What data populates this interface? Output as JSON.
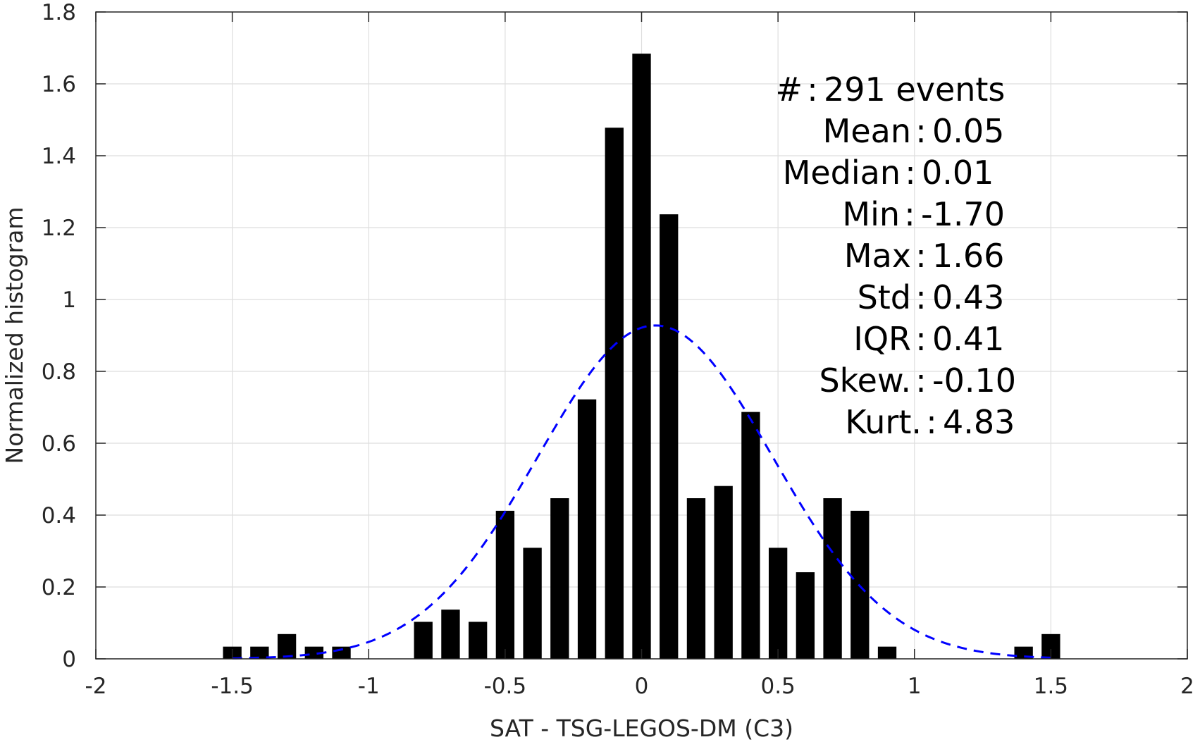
{
  "chart_data": {
    "type": "bar",
    "xlabel": "SAT - TSG-LEGOS-DM (C3)",
    "ylabel": "Normalized histogram",
    "xlim": [
      -2,
      2
    ],
    "ylim": [
      0,
      1.8
    ],
    "xticks": [
      "-2",
      "-1.5",
      "-1",
      "-0.5",
      "0",
      "0.5",
      "1",
      "1.5",
      "2"
    ],
    "yticks": [
      "0",
      "0.2",
      "0.4",
      "0.6",
      "0.8",
      "1",
      "1.2",
      "1.4",
      "1.6",
      "1.8"
    ],
    "grid": true,
    "series": [
      {
        "type": "bar",
        "color": "#000000",
        "bin_width": 0.1,
        "x": [
          -1.5,
          -1.4,
          -1.3,
          -1.2,
          -1.1,
          -0.8,
          -0.7,
          -0.6,
          -0.5,
          -0.4,
          -0.3,
          -0.2,
          -0.1,
          0.0,
          0.1,
          0.2,
          0.3,
          0.4,
          0.5,
          0.6,
          0.7,
          0.8,
          0.9,
          1.4,
          1.5
        ],
        "values": [
          0.034,
          0.034,
          0.069,
          0.034,
          0.034,
          0.103,
          0.137,
          0.103,
          0.412,
          0.309,
          0.447,
          0.722,
          1.478,
          1.684,
          1.237,
          0.447,
          0.481,
          0.687,
          0.309,
          0.241,
          0.447,
          0.412,
          0.034,
          0.034,
          0.069
        ]
      },
      {
        "type": "line",
        "style": "dashed",
        "color": "#0000ff",
        "distribution": "normal-fit",
        "mean": 0.05,
        "std": 0.43,
        "x_range": [
          -1.5,
          1.5
        ]
      }
    ],
    "annotation": [
      {
        "label": "#",
        "sep": ":",
        "value": "291 events"
      },
      {
        "label": "Mean",
        "sep": ":",
        "value": "0.05"
      },
      {
        "label": "Median",
        "sep": ":",
        "value": "0.01"
      },
      {
        "label": "Min",
        "sep": ":",
        "value": "-1.70"
      },
      {
        "label": "Max",
        "sep": ":",
        "value": "1.66"
      },
      {
        "label": "Std",
        "sep": ":",
        "value": "0.43"
      },
      {
        "label": "IQR",
        "sep": ":",
        "value": "0.41"
      },
      {
        "label": "Skew.",
        "sep": ":",
        "value": "-0.10"
      },
      {
        "label": "Kurt.",
        "sep": ":",
        "value": "4.83"
      }
    ]
  }
}
